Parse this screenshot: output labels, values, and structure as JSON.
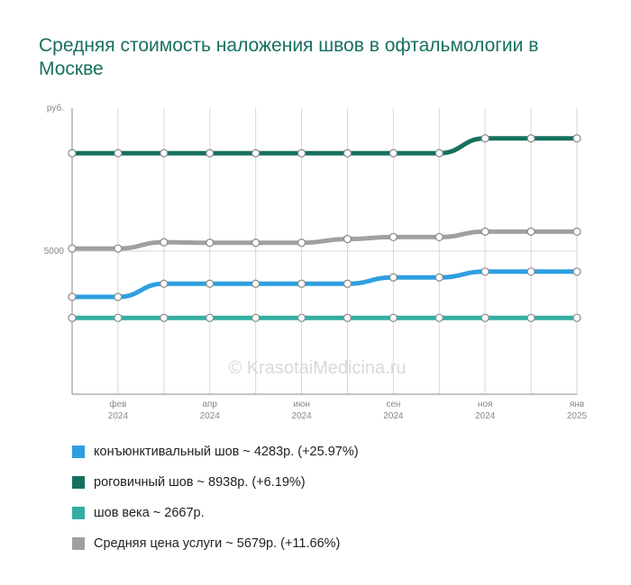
{
  "title": "Средняя стоимость наложения швов в офтальмологии в Москве",
  "watermark": "© KrasotaiMedicina.ru",
  "chart_data": {
    "type": "line",
    "y_unit_label": "руб.",
    "y_ticks": [
      {
        "value": 5000,
        "label": "5000"
      }
    ],
    "ylim": [
      0,
      10000
    ],
    "x_ticks": [
      {
        "index": 1,
        "line1": "фев",
        "line2": "2024"
      },
      {
        "index": 3,
        "line1": "апр",
        "line2": "2024"
      },
      {
        "index": 5,
        "line1": "июн",
        "line2": "2024"
      },
      {
        "index": 7,
        "line1": "сен",
        "line2": "2024"
      },
      {
        "index": 9,
        "line1": "ноя",
        "line2": "2024"
      },
      {
        "index": 11,
        "line1": "янв",
        "line2": "2025"
      }
    ],
    "grid": true,
    "series": [
      {
        "legend": "роговичный шов ~ 8938р. (+6.19%)",
        "color": "#17705f",
        "values": [
          8420,
          8420,
          8420,
          8420,
          8420,
          8420,
          8420,
          8420,
          8420,
          8938,
          8938,
          8938
        ]
      },
      {
        "legend": "Средняя цена услуги ~ 5679р. (+11.66%)",
        "color": "#a0a0a0",
        "values": [
          5090,
          5090,
          5310,
          5290,
          5290,
          5290,
          5420,
          5490,
          5490,
          5679,
          5679,
          5679
        ]
      },
      {
        "legend": "конъюнктивальный шов ~ 4283р. (+25.97%)",
        "color": "#2e9fe0",
        "values": [
          3400,
          3400,
          3860,
          3860,
          3860,
          3860,
          3860,
          4080,
          4080,
          4283,
          4283,
          4283
        ]
      },
      {
        "legend": "шов века ~ 2667р.",
        "color": "#35ada2",
        "values": [
          2667,
          2667,
          2667,
          2667,
          2667,
          2667,
          2667,
          2667,
          2667,
          2667,
          2667,
          2667
        ]
      }
    ],
    "legend_order": [
      2,
      0,
      3,
      1
    ]
  }
}
